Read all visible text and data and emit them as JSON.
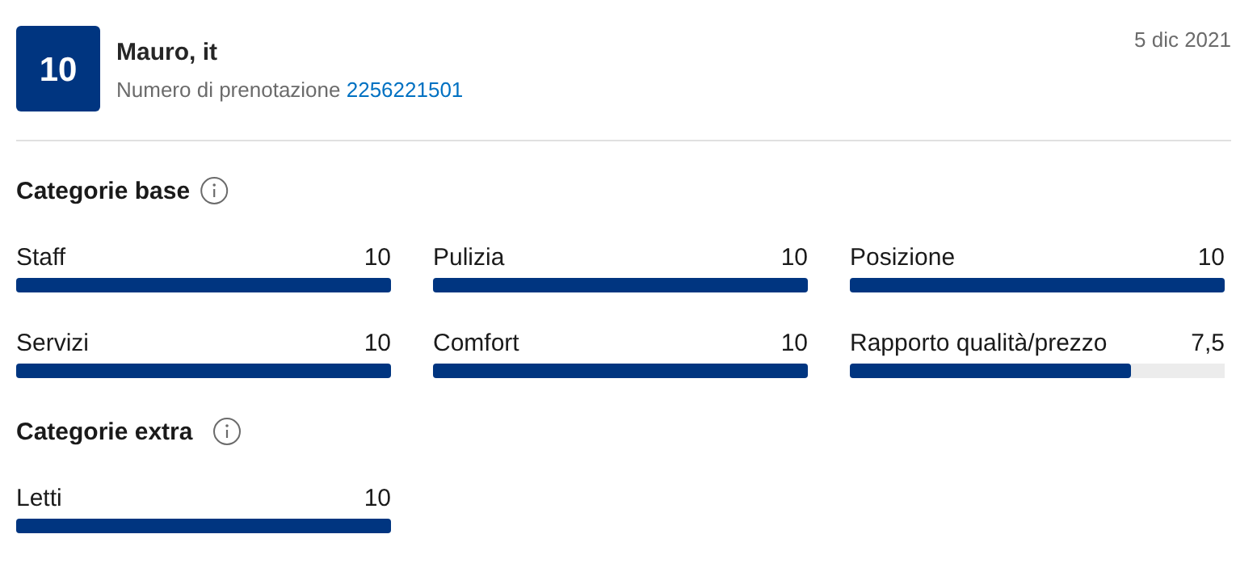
{
  "chart_data": [
    {
      "type": "other",
      "title": "Mauro, it",
      "annotations": [
        "10",
        "Numero di prenotazione",
        "2256221501",
        "5 dic 2021"
      ]
    },
    {
      "type": "bar",
      "orientation": "horizontal",
      "title": "Categorie base",
      "categories": [
        "Staff",
        "Servizi"
      ],
      "values": [
        10,
        10
      ],
      "value_labels": [
        "10",
        "10"
      ],
      "color": "#003580"
    },
    {
      "type": "bar",
      "orientation": "horizontal",
      "categories": [
        "Pulizia",
        "Comfort"
      ],
      "values": [
        10,
        10
      ],
      "value_labels": [
        "10",
        "10"
      ],
      "color": "#003580"
    },
    {
      "type": "bar",
      "orientation": "horizontal",
      "categories": [
        "Posizione",
        "Rapporto qualità/prezzo"
      ],
      "values": [
        10,
        7.5
      ],
      "value_labels": [
        "10",
        "7,5"
      ],
      "color": "#003580",
      "xlim": [
        0,
        10
      ]
    },
    {
      "type": "bar",
      "orientation": "horizontal",
      "title": "Categorie extra",
      "categories": [
        "Letti"
      ],
      "values": [
        10
      ],
      "value_labels": [
        "10"
      ],
      "color": "#003580"
    }
  ]
}
